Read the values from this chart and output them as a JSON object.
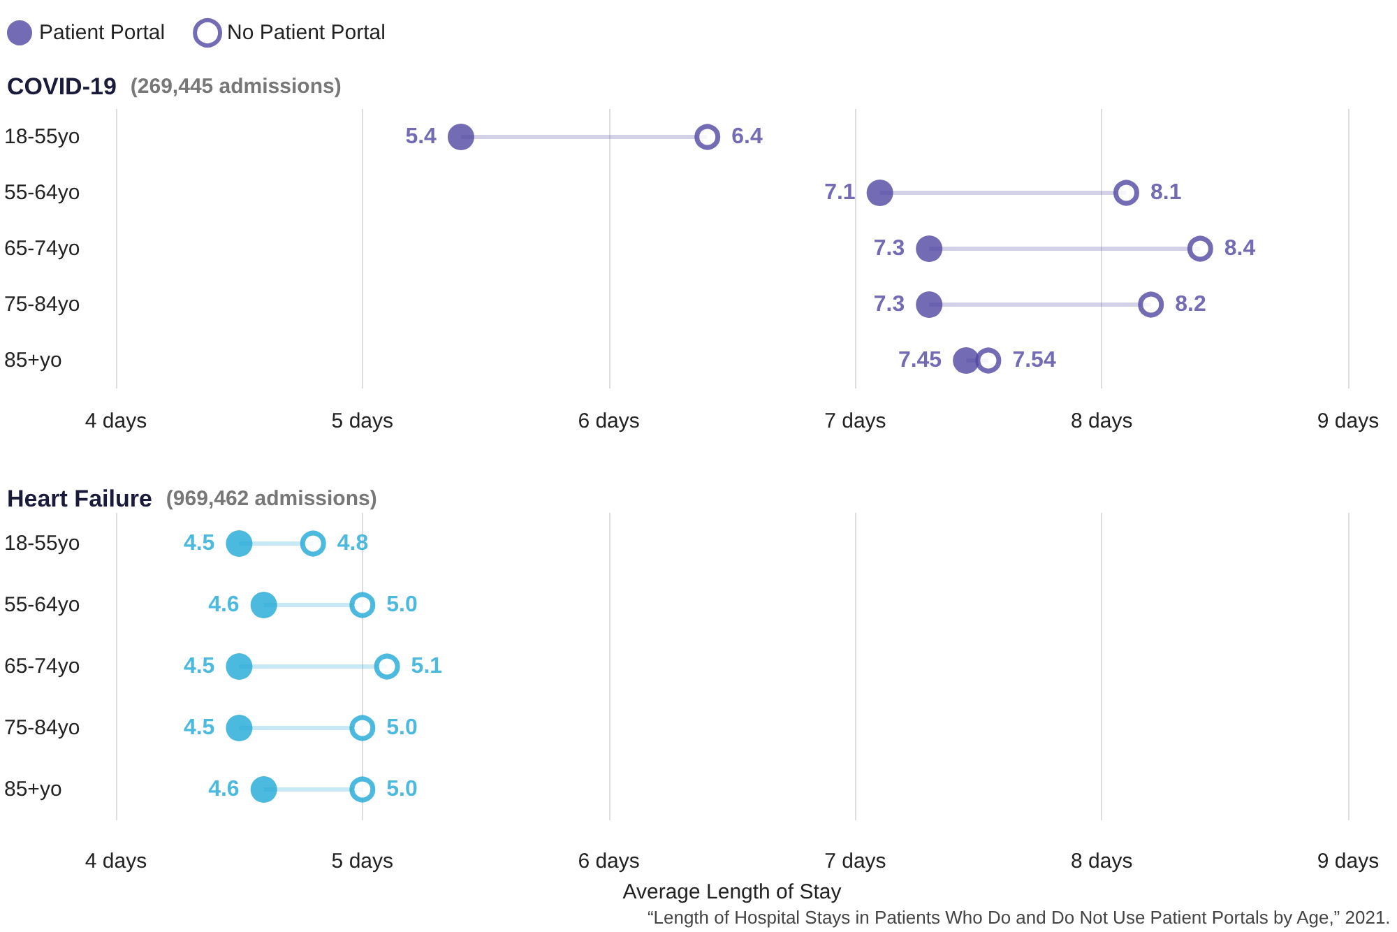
{
  "chart_data": [
    {
      "type": "scatter",
      "title": "COVID-19",
      "subtitle": "(269,445 admissions)",
      "orientation": "horizontal",
      "categories": [
        "18-55yo",
        "55-64yo",
        "65-74yo",
        "75-84yo",
        "85+yo"
      ],
      "xlim": [
        4,
        9
      ],
      "xticks": [
        {
          "value": 4,
          "label": "4 days"
        },
        {
          "value": 5,
          "label": "5 days"
        },
        {
          "value": 6,
          "label": "6 days"
        },
        {
          "value": 7,
          "label": "7 days"
        },
        {
          "value": 8,
          "label": "8 days"
        },
        {
          "value": 9,
          "label": "9 days"
        }
      ],
      "grid": "x",
      "legend": "top left",
      "marker": "circle",
      "series": [
        {
          "name": "Patient Portal",
          "color": "#5046a0",
          "values": [
            5.4,
            7.1,
            7.3,
            7.3,
            7.45
          ],
          "value_labels": [
            "5.4",
            "7.1",
            "7.3",
            "7.3",
            "7.45"
          ]
        },
        {
          "name": "No Patient Portal",
          "color": "#5046a0",
          "values": [
            6.4,
            8.1,
            8.4,
            8.2,
            7.54
          ],
          "value_labels": [
            "6.4",
            "8.1",
            "8.4",
            "8.2",
            "7.54"
          ]
        }
      ]
    },
    {
      "type": "scatter",
      "title": "Heart Failure",
      "subtitle": "(969,462 admissions)",
      "orientation": "horizontal",
      "categories": [
        "18-55yo",
        "55-64yo",
        "65-74yo",
        "75-84yo",
        "85+yo"
      ],
      "xlim": [
        4,
        9
      ],
      "xticks": [
        {
          "value": 4,
          "label": "4 days"
        },
        {
          "value": 5,
          "label": "5 days"
        },
        {
          "value": 6,
          "label": "6 days"
        },
        {
          "value": 7,
          "label": "7 days"
        },
        {
          "value": 8,
          "label": "8 days"
        },
        {
          "value": 9,
          "label": "9 days"
        }
      ],
      "grid": "x",
      "marker": "circle",
      "xlabel": "Average Length of Stay",
      "annotations": [
        "“Length of Hospital Stays in Patients Who Do and Do Not Use Patient Portals by Age,” 2021."
      ],
      "series": [
        {
          "color": "#1fa8d6",
          "values": [
            4.5,
            4.6,
            4.5,
            4.5,
            4.6
          ],
          "value_labels": [
            "4.5",
            "4.6",
            "4.5",
            "4.5",
            "4.6"
          ]
        },
        {
          "color": "#1fa8d6",
          "values": [
            4.8,
            5.0,
            5.1,
            5.0,
            5.0
          ],
          "value_labels": [
            "4.8",
            "5.0",
            "5.1",
            "5.0",
            "5.0"
          ]
        }
      ]
    }
  ]
}
